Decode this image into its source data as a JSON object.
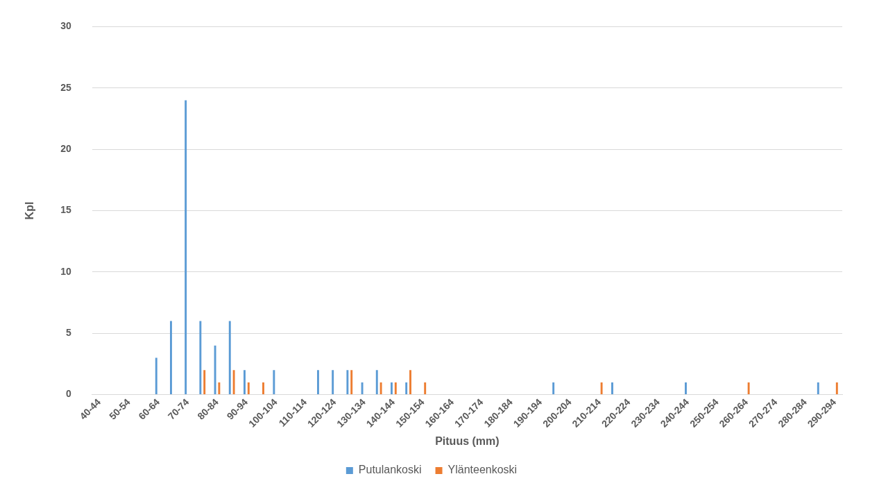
{
  "chart_data": {
    "type": "bar",
    "xlabel": "Pituus (mm)",
    "ylabel": "Kpl",
    "categories": [
      "40-44",
      null,
      "50-54",
      null,
      "60-64",
      null,
      "70-74",
      null,
      "80-84",
      null,
      "90-94",
      null,
      "100-104",
      null,
      "110-114",
      null,
      "120-124",
      null,
      "130-134",
      null,
      "140-144",
      null,
      "150-154",
      null,
      "160-164",
      null,
      "170-174",
      null,
      "180-184",
      null,
      "190-194",
      null,
      "200-204",
      null,
      "210-214",
      null,
      "220-224",
      null,
      "230-234",
      null,
      "240-244",
      null,
      "250-254",
      null,
      "260-264",
      null,
      "270-274",
      null,
      "280-284",
      null,
      "290-294"
    ],
    "series": [
      {
        "name": "Putulankoski",
        "color": "#5b9bd5",
        "values": [
          0,
          0,
          0,
          0,
          3,
          6,
          24,
          6,
          4,
          6,
          2,
          0,
          2,
          0,
          0,
          2,
          2,
          2,
          1,
          2,
          1,
          1,
          0,
          0,
          0,
          0,
          0,
          0,
          0,
          0,
          0,
          1,
          0,
          0,
          0,
          1,
          0,
          0,
          0,
          0,
          1,
          0,
          0,
          0,
          0,
          0,
          0,
          0,
          0,
          1,
          0
        ]
      },
      {
        "name": "Ylänteenkoski",
        "color": "#ed7d31",
        "values": [
          0,
          0,
          0,
          0,
          0,
          0,
          0,
          2,
          1,
          2,
          1,
          1,
          0,
          0,
          0,
          0,
          0,
          2,
          0,
          1,
          1,
          2,
          1,
          0,
          0,
          0,
          0,
          0,
          0,
          0,
          0,
          0,
          0,
          0,
          1,
          0,
          0,
          0,
          0,
          0,
          0,
          0,
          0,
          0,
          1,
          0,
          0,
          0,
          0,
          0,
          1
        ]
      }
    ],
    "ylim": [
      0,
      30
    ],
    "yticks": [
      0,
      5,
      10,
      15,
      20,
      25,
      30
    ],
    "grid": "y",
    "legend": "bottom"
  }
}
